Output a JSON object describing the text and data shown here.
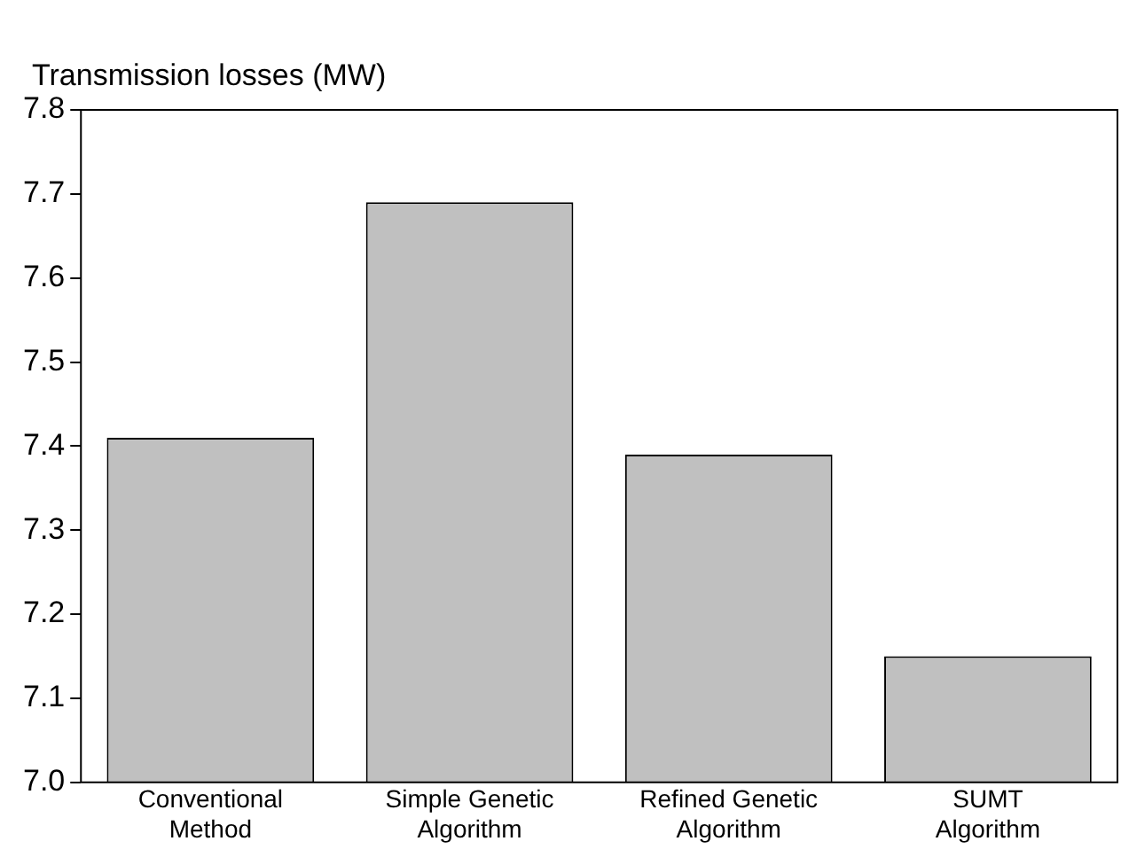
{
  "chart_data": {
    "type": "bar",
    "ylabel": "Transmission losses (MW)",
    "categories": [
      "Conventional Method",
      "Simple Genetic Algorithm",
      "Refined Genetic Algorithm",
      "SUMT Algorithm"
    ],
    "values": [
      7.41,
      7.69,
      7.39,
      7.15
    ],
    "color": "#c0c0c0",
    "ylim": [
      7.0,
      7.8
    ],
    "yticks": [
      {
        "value": 7.0,
        "label": "7.0"
      },
      7.1,
      7.2,
      7.3,
      7.4,
      7.5,
      7.6,
      7.7,
      7.8
    ],
    "grid": false,
    "legend": false
  }
}
